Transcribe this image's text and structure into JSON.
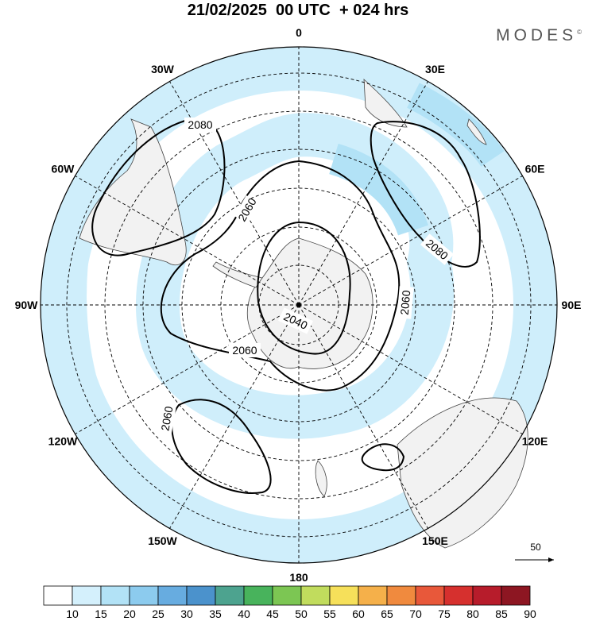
{
  "title": "21/02/2025  00 UTC  + 024 hrs",
  "brand": "MODES",
  "brand_mark": "©",
  "longitude_labels": [
    {
      "text": "0",
      "lon": 0
    },
    {
      "text": "30E",
      "lon": 30
    },
    {
      "text": "60E",
      "lon": 60
    },
    {
      "text": "90E",
      "lon": 90
    },
    {
      "text": "120E",
      "lon": 120
    },
    {
      "text": "150E",
      "lon": 150
    },
    {
      "text": "180",
      "lon": 180
    },
    {
      "text": "150W",
      "lon": -150
    },
    {
      "text": "120W",
      "lon": -120
    },
    {
      "text": "90W",
      "lon": -90
    },
    {
      "text": "60W",
      "lon": -60
    },
    {
      "text": "30W",
      "lon": -30
    }
  ],
  "contour_labels": [
    "2080",
    "2060",
    "2080",
    "2060",
    "2040",
    "2060",
    "2060"
  ],
  "vector_reference": "50",
  "colorbar": {
    "ticks": [
      "10",
      "15",
      "20",
      "25",
      "30",
      "35",
      "40",
      "45",
      "50",
      "55",
      "60",
      "65",
      "70",
      "75",
      "80",
      "85",
      "90"
    ],
    "colors": [
      "#ffffff",
      "#d4f0fc",
      "#b2e2f6",
      "#8ccbee",
      "#67ace0",
      "#4b92cc",
      "#4da38f",
      "#48b35c",
      "#7cc653",
      "#c1dc5d",
      "#f6e05a",
      "#f5b04a",
      "#f08a3e",
      "#e8583a",
      "#d6302e",
      "#b71c2b",
      "#8d1622"
    ]
  }
}
